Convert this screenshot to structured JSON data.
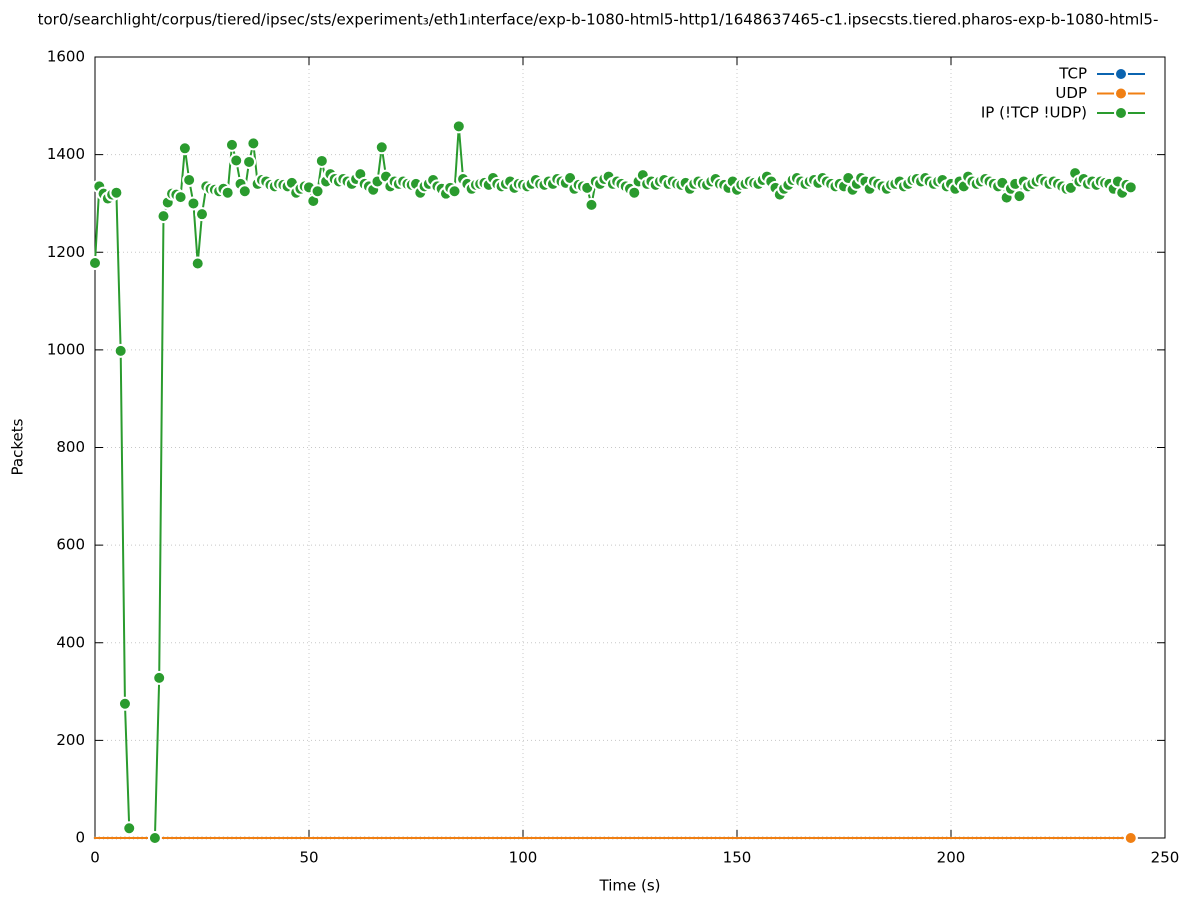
{
  "chart_data": {
    "type": "line",
    "title": "tor0/searchlight/corpus/tiered/ipsec/sts/experiment₃/eth1ᵢnterface/exp-b-1080-html5-http1/1648637465-c1.ipsecsts.tiered.pharos-exp-b-1080-html5-",
    "xlabel": "Time (s)",
    "ylabel": "Packets",
    "xlim": [
      0,
      250
    ],
    "ylim": [
      0,
      1600
    ],
    "xticks": [
      0,
      50,
      100,
      150,
      200,
      250
    ],
    "yticks": [
      0,
      200,
      400,
      600,
      800,
      1000,
      1200,
      1400,
      1600
    ],
    "grid": true,
    "legend": "top-right",
    "x": [
      0,
      1,
      2,
      3,
      4,
      5,
      6,
      7,
      8,
      9,
      10,
      11,
      12,
      13,
      14,
      15,
      16,
      17,
      18,
      19,
      20,
      21,
      22,
      23,
      24,
      25,
      26,
      27,
      28,
      29,
      30,
      31,
      32,
      33,
      34,
      35,
      36,
      37,
      38,
      39,
      40,
      41,
      42,
      43,
      44,
      45,
      46,
      47,
      48,
      49,
      50,
      51,
      52,
      53,
      54,
      55,
      56,
      57,
      58,
      59,
      60,
      61,
      62,
      63,
      64,
      65,
      66,
      67,
      68,
      69,
      70,
      71,
      72,
      73,
      74,
      75,
      76,
      77,
      78,
      79,
      80,
      81,
      82,
      83,
      84,
      85,
      86,
      87,
      88,
      89,
      90,
      91,
      92,
      93,
      94,
      95,
      96,
      97,
      98,
      99,
      100,
      101,
      102,
      103,
      104,
      105,
      106,
      107,
      108,
      109,
      110,
      111,
      112,
      113,
      114,
      115,
      116,
      117,
      118,
      119,
      120,
      121,
      122,
      123,
      124,
      125,
      126,
      127,
      128,
      129,
      130,
      131,
      132,
      133,
      134,
      135,
      136,
      137,
      138,
      139,
      140,
      141,
      142,
      143,
      144,
      145,
      146,
      147,
      148,
      149,
      150,
      151,
      152,
      153,
      154,
      155,
      156,
      157,
      158,
      159,
      160,
      161,
      162,
      163,
      164,
      165,
      166,
      167,
      168,
      169,
      170,
      171,
      172,
      173,
      174,
      175,
      176,
      177,
      178,
      179,
      180,
      181,
      182,
      183,
      184,
      185,
      186,
      187,
      188,
      189,
      190,
      191,
      192,
      193,
      194,
      195,
      196,
      197,
      198,
      199,
      200,
      201,
      202,
      203,
      204,
      205,
      206,
      207,
      208,
      209,
      210,
      211,
      212,
      213,
      214,
      215,
      216,
      217,
      218,
      219,
      220,
      221,
      222,
      223,
      224,
      225,
      226,
      227,
      228,
      229,
      230,
      231,
      232,
      233,
      234,
      235,
      236,
      237,
      238,
      239,
      240,
      241,
      242
    ],
    "series": [
      {
        "name": "TCP",
        "color": "#0b64b0",
        "values": [
          0,
          0,
          0,
          0,
          0,
          0,
          0,
          0,
          0,
          0,
          0,
          0,
          0,
          0,
          0,
          0,
          0,
          0,
          0,
          0,
          0,
          0,
          0,
          0,
          0,
          0,
          0,
          0,
          0,
          0,
          0,
          0,
          0,
          0,
          0,
          0,
          0,
          0,
          0,
          0,
          0,
          0,
          0,
          0,
          0,
          0,
          0,
          0,
          0,
          0,
          0,
          0,
          0,
          0,
          0,
          0,
          0,
          0,
          0,
          0,
          0,
          0,
          0,
          0,
          0,
          0,
          0,
          0,
          0,
          0,
          0,
          0,
          0,
          0,
          0,
          0,
          0,
          0,
          0,
          0,
          0,
          0,
          0,
          0,
          0,
          0,
          0,
          0,
          0,
          0,
          0,
          0,
          0,
          0,
          0,
          0,
          0,
          0,
          0,
          0,
          0,
          0,
          0,
          0,
          0,
          0,
          0,
          0,
          0,
          0,
          0,
          0,
          0,
          0,
          0,
          0,
          0,
          0,
          0,
          0,
          0,
          0,
          0,
          0,
          0,
          0,
          0,
          0,
          0,
          0,
          0,
          0,
          0,
          0,
          0,
          0,
          0,
          0,
          0,
          0,
          0,
          0,
          0,
          0,
          0,
          0,
          0,
          0,
          0,
          0,
          0,
          0,
          0,
          0,
          0,
          0,
          0,
          0,
          0,
          0,
          0,
          0,
          0,
          0,
          0,
          0,
          0,
          0,
          0,
          0,
          0,
          0,
          0,
          0,
          0,
          0,
          0,
          0,
          0,
          0,
          0,
          0,
          0,
          0,
          0,
          0,
          0,
          0,
          0,
          0,
          0,
          0,
          0,
          0,
          0,
          0,
          0,
          0,
          0,
          0,
          0,
          0,
          0,
          0,
          0,
          0,
          0,
          0,
          0,
          0,
          0,
          0,
          0,
          0,
          0,
          0,
          0,
          0,
          0,
          0,
          0,
          0,
          0,
          0,
          0,
          0,
          0,
          0,
          0,
          0,
          0,
          0,
          0,
          0,
          0,
          0,
          0,
          0,
          0,
          0,
          0,
          0,
          0
        ]
      },
      {
        "name": "UDP",
        "color": "#f07f13",
        "values": [
          0,
          0,
          0,
          0,
          0,
          0,
          0,
          0,
          0,
          0,
          0,
          0,
          0,
          0,
          0,
          0,
          0,
          0,
          0,
          0,
          0,
          0,
          0,
          0,
          0,
          0,
          0,
          0,
          0,
          0,
          0,
          0,
          0,
          0,
          0,
          0,
          0,
          0,
          0,
          0,
          0,
          0,
          0,
          0,
          0,
          0,
          0,
          0,
          0,
          0,
          0,
          0,
          0,
          0,
          0,
          0,
          0,
          0,
          0,
          0,
          0,
          0,
          0,
          0,
          0,
          0,
          0,
          0,
          0,
          0,
          0,
          0,
          0,
          0,
          0,
          0,
          0,
          0,
          0,
          0,
          0,
          0,
          0,
          0,
          0,
          0,
          0,
          0,
          0,
          0,
          0,
          0,
          0,
          0,
          0,
          0,
          0,
          0,
          0,
          0,
          0,
          0,
          0,
          0,
          0,
          0,
          0,
          0,
          0,
          0,
          0,
          0,
          0,
          0,
          0,
          0,
          0,
          0,
          0,
          0,
          0,
          0,
          0,
          0,
          0,
          0,
          0,
          0,
          0,
          0,
          0,
          0,
          0,
          0,
          0,
          0,
          0,
          0,
          0,
          0,
          0,
          0,
          0,
          0,
          0,
          0,
          0,
          0,
          0,
          0,
          0,
          0,
          0,
          0,
          0,
          0,
          0,
          0,
          0,
          0,
          0,
          0,
          0,
          0,
          0,
          0,
          0,
          0,
          0,
          0,
          0,
          0,
          0,
          0,
          0,
          0,
          0,
          0,
          0,
          0,
          0,
          0,
          0,
          0,
          0,
          0,
          0,
          0,
          0,
          0,
          0,
          0,
          0,
          0,
          0,
          0,
          0,
          0,
          0,
          0,
          0,
          0,
          0,
          0,
          0,
          0,
          0,
          0,
          0,
          0,
          0,
          0,
          0,
          0,
          0,
          0,
          0,
          0,
          0,
          0,
          0,
          0,
          0,
          0,
          0,
          0,
          0,
          0,
          0,
          0,
          0,
          0,
          0,
          0,
          0,
          0,
          0,
          0,
          0,
          0,
          0,
          0,
          0
        ]
      },
      {
        "name": "IP (!TCP  !UDP)",
        "color": "#2a9b2e",
        "values": [
          1178,
          1335,
          1320,
          1310,
          1318,
          1322,
          998,
          275,
          20,
          null,
          null,
          null,
          null,
          null,
          0,
          328,
          1274,
          1302,
          1320,
          1318,
          1313,
          1413,
          1348,
          1300,
          1177,
          1278,
          1335,
          1330,
          1328,
          1325,
          1330,
          1322,
          1420,
          1388,
          1340,
          1325,
          1385,
          1423,
          1340,
          1348,
          1345,
          1338,
          1335,
          1340,
          1338,
          1335,
          1342,
          1322,
          1330,
          1335,
          1333,
          1305,
          1325,
          1387,
          1345,
          1360,
          1350,
          1345,
          1350,
          1345,
          1340,
          1350,
          1360,
          1340,
          1335,
          1328,
          1345,
          1415,
          1355,
          1335,
          1345,
          1340,
          1345,
          1340,
          1338,
          1340,
          1322,
          1335,
          1340,
          1348,
          1335,
          1330,
          1320,
          1332,
          1325,
          1458,
          1350,
          1340,
          1330,
          1338,
          1340,
          1342,
          1338,
          1352,
          1340,
          1335,
          1340,
          1345,
          1332,
          1340,
          1338,
          1335,
          1340,
          1348,
          1340,
          1338,
          1345,
          1340,
          1350,
          1345,
          1342,
          1352,
          1330,
          1338,
          1335,
          1332,
          1297,
          1345,
          1340,
          1350,
          1355,
          1340,
          1345,
          1340,
          1335,
          1330,
          1322,
          1345,
          1358,
          1340,
          1345,
          1338,
          1345,
          1348,
          1340,
          1345,
          1340,
          1338,
          1342,
          1330,
          1340,
          1345,
          1340,
          1338,
          1345,
          1350,
          1340,
          1338,
          1332,
          1345,
          1328,
          1338,
          1340,
          1345,
          1342,
          1340,
          1348,
          1355,
          1345,
          1332,
          1318,
          1330,
          1338,
          1348,
          1352,
          1345,
          1340,
          1345,
          1348,
          1342,
          1352,
          1345,
          1340,
          1335,
          1340,
          1335,
          1352,
          1328,
          1340,
          1352,
          1345,
          1330,
          1345,
          1340,
          1335,
          1330,
          1338,
          1340,
          1345,
          1335,
          1340,
          1348,
          1350,
          1345,
          1352,
          1345,
          1340,
          1345,
          1348,
          1335,
          1340,
          1330,
          1345,
          1335,
          1355,
          1345,
          1340,
          1345,
          1350,
          1345,
          1340,
          1335,
          1342,
          1312,
          1330,
          1340,
          1315,
          1345,
          1335,
          1340,
          1345,
          1350,
          1345,
          1340,
          1345,
          1340,
          1335,
          1330,
          1332,
          1362,
          1345,
          1350,
          1340,
          1345,
          1338,
          1345,
          1342,
          1340,
          1330,
          1345,
          1322,
          1338,
          1333
        ]
      }
    ]
  }
}
